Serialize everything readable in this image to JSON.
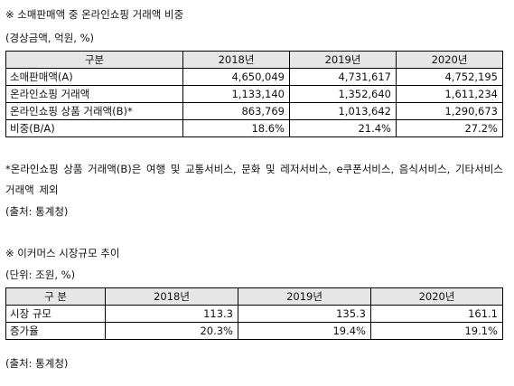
{
  "section1": {
    "title": "※ 소매판매액 중 온라인쇼핑 거래액 비중",
    "unit": "(경상금액, 억원, %)",
    "headers": [
      "구분",
      "2018년",
      "2019년",
      "2020년"
    ],
    "rows": [
      {
        "label": "소매판매액(A)",
        "values": [
          "4,650,049",
          "4,731,617",
          "4,752,195"
        ]
      },
      {
        "label": "온라인쇼핑 거래액",
        "values": [
          "1,133,140",
          "1,352,640",
          "1,611,234"
        ]
      },
      {
        "label": "온라인쇼핑 상품 거래액(B)*",
        "values": [
          "863,769",
          "1,013,642",
          "1,290,673"
        ]
      },
      {
        "label": "비중(B/A)",
        "values": [
          "18.6%",
          "21.4%",
          "27.2%"
        ]
      }
    ],
    "footnote": "*온라인쇼핑 상품 거래액(B)은 여행 및 교통서비스, 문화 및 레저서비스, e쿠폰서비스, 음식서비스, 기타서비스 거래액 제외",
    "source": "(출처: 통계청)"
  },
  "section2": {
    "title": "※ 이커머스 시장규모 추이",
    "unit": "(단위: 조원, %)",
    "headers": [
      "구 분",
      "2018년",
      "2019년",
      "2020년"
    ],
    "rows": [
      {
        "label": "시장 규모",
        "values": [
          "113.3",
          "135.3",
          "161.1"
        ]
      },
      {
        "label": "증가율",
        "values": [
          "20.3%",
          "19.4%",
          "19.1%"
        ]
      }
    ],
    "source": "(출처: 통계청)"
  }
}
